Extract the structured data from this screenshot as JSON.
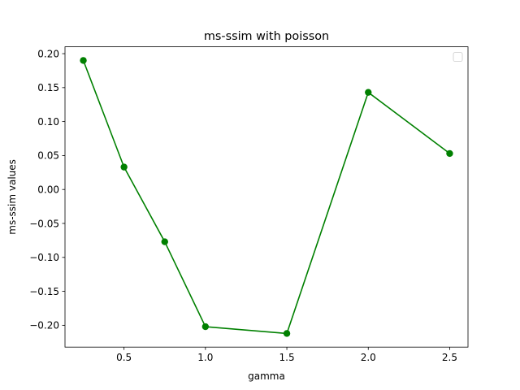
{
  "chart_data": {
    "type": "line",
    "title": "ms-ssim with poisson",
    "xlabel": "gamma",
    "ylabel": "ms-ssim values",
    "x": [
      0.25,
      0.5,
      0.75,
      1.0,
      1.5,
      2.0,
      2.5
    ],
    "series": [
      {
        "values": [
          0.19,
          0.033,
          -0.077,
          -0.202,
          -0.212,
          0.143,
          0.053
        ]
      }
    ],
    "xlim": [
      0.1375,
      2.6125
    ],
    "ylim": [
      -0.2321,
      0.2101
    ],
    "xticks": [
      0.5,
      1.0,
      1.5,
      2.0,
      2.5
    ],
    "xtick_labels": [
      "0.5",
      "1.0",
      "1.5",
      "2.0",
      "2.5"
    ],
    "yticks": [
      0.2,
      0.15,
      0.1,
      0.05,
      0.0,
      -0.05,
      -0.1,
      -0.15,
      -0.2
    ],
    "ytick_labels": [
      "0.20",
      "0.15",
      "0.10",
      "0.05",
      "0.00",
      "−0.05",
      "−0.10",
      "−0.15",
      "−0.20"
    ],
    "line_color": "#008000",
    "marker": "circle",
    "grid": false,
    "legend": "top-right (empty)"
  }
}
